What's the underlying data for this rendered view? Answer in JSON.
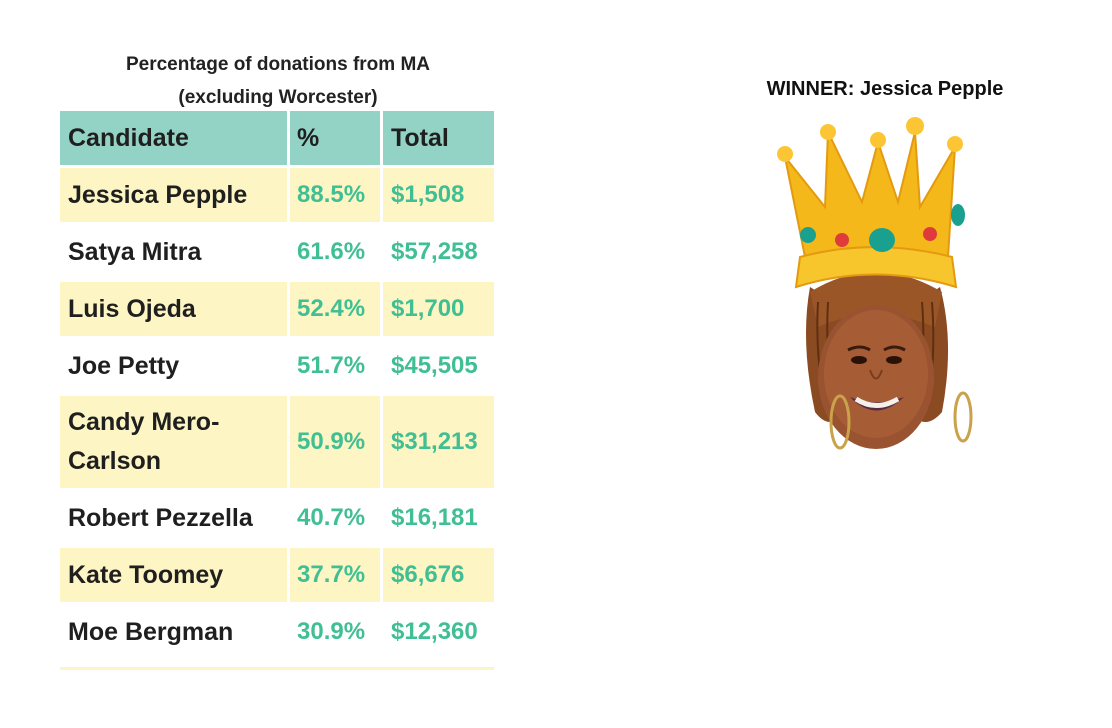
{
  "chart_data": {
    "type": "table",
    "title_lines": [
      "Percentage of donations from MA",
      "(excluding Worcester)"
    ],
    "columns": [
      "Candidate",
      "%",
      "Total"
    ],
    "rows": [
      {
        "candidate": "Jessica Pepple",
        "percent": "88.5%",
        "total": "$1,508"
      },
      {
        "candidate": "Satya Mitra",
        "percent": "61.6%",
        "total": "$57,258"
      },
      {
        "candidate": "Luis Ojeda",
        "percent": "52.4%",
        "total": "$1,700"
      },
      {
        "candidate": "Joe Petty",
        "percent": "51.7%",
        "total": "$45,505"
      },
      {
        "candidate": "Candy Mero-Carlson",
        "percent": "50.9%",
        "total": "$31,213"
      },
      {
        "candidate": "Robert Pezzella",
        "percent": "40.7%",
        "total": "$16,181"
      },
      {
        "candidate": "Kate Toomey",
        "percent": "37.7%",
        "total": "$6,676"
      },
      {
        "candidate": "Moe Bergman",
        "percent": "30.9%",
        "total": "$12,360"
      }
    ]
  },
  "winner": {
    "label": "WINNER: Jessica Pepple"
  },
  "colors": {
    "header": "#93d3c5",
    "shaded_row": "#fdf5c3",
    "value_text": "#3fbf93"
  },
  "icons": [
    "crown-icon",
    "winner-portrait"
  ]
}
